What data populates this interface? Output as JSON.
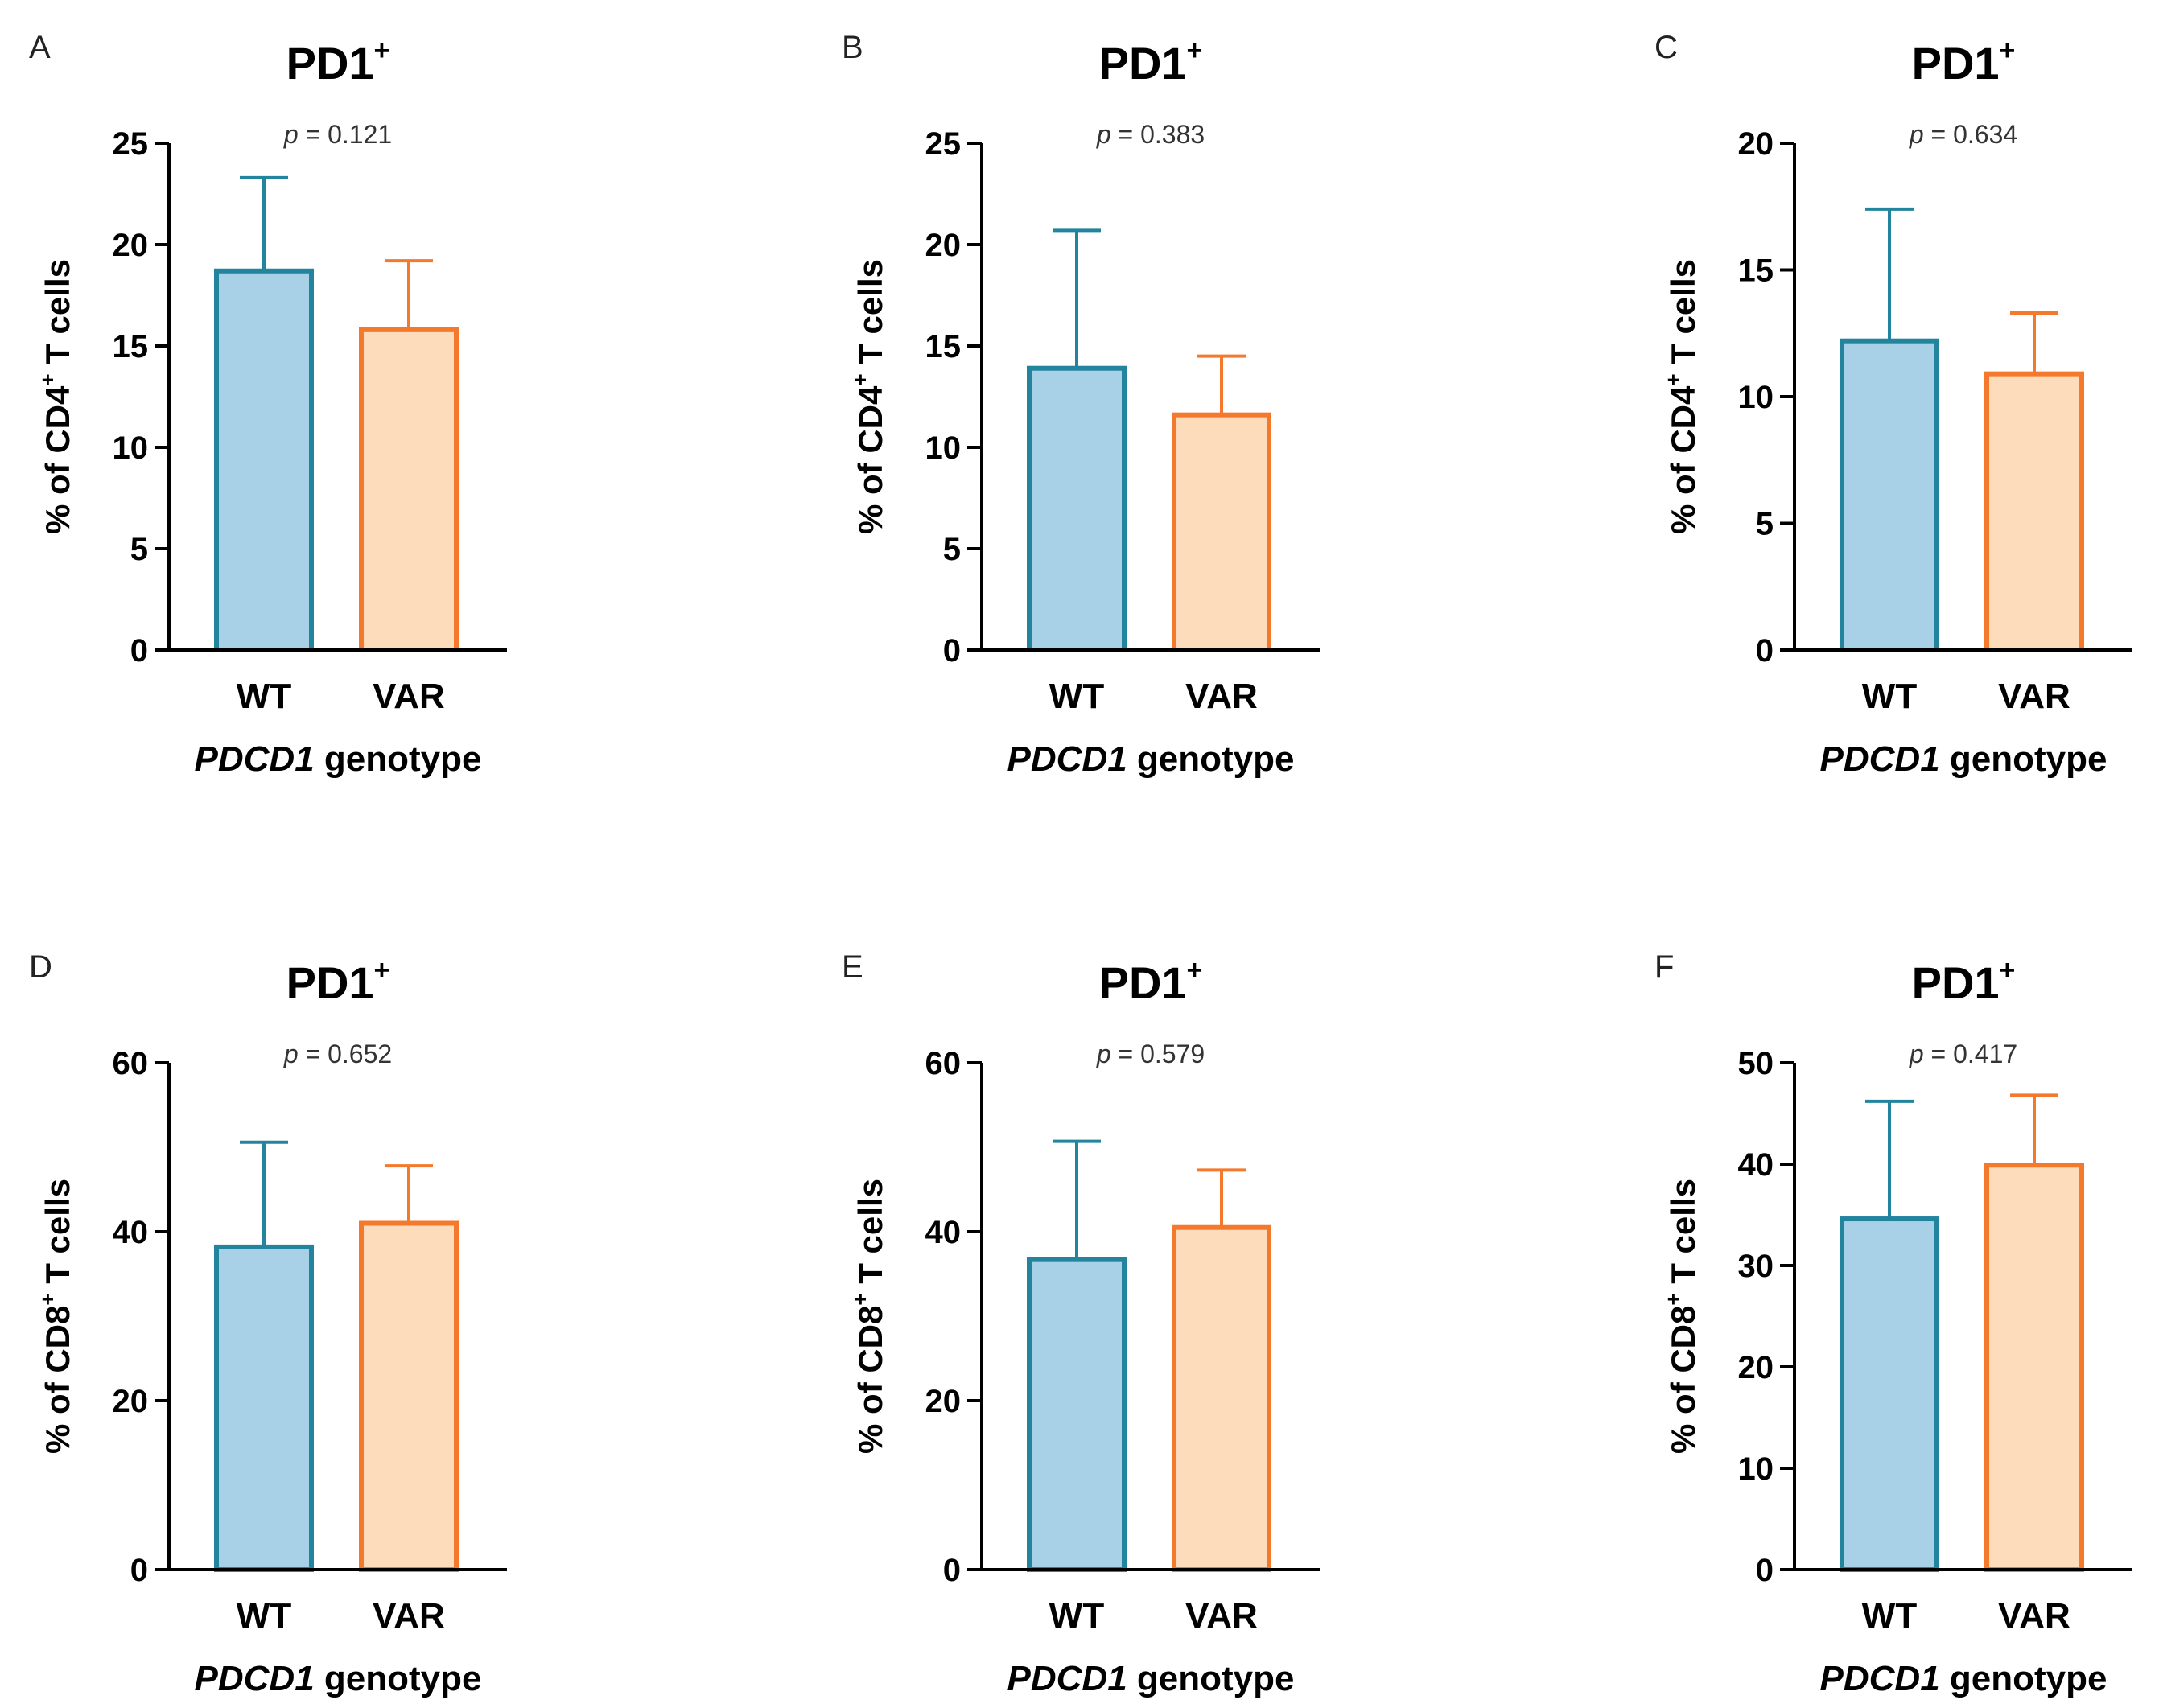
{
  "chart_data": [
    {
      "panel": "A",
      "type": "bar",
      "title": "PD1",
      "title_sup": "+",
      "p_label": "p",
      "p_text": " = 0.121",
      "ylabel_prefix": "% of CD4",
      "ylabel_sup": "+",
      "ylabel_suffix": " T cells",
      "xlabel_gene": "PDCD1",
      "xlabel_suffix": " genotype",
      "categories": [
        "WT",
        "VAR"
      ],
      "values": [
        18.7,
        15.8
      ],
      "errors": [
        4.6,
        3.4
      ],
      "ylim": [
        0,
        25
      ],
      "yticks": [
        0,
        5,
        10,
        15,
        20,
        25
      ]
    },
    {
      "panel": "B",
      "type": "bar",
      "title": "PD1",
      "title_sup": "+",
      "p_label": "p",
      "p_text": " = 0.383",
      "ylabel_prefix": "% of CD4",
      "ylabel_sup": "+",
      "ylabel_suffix": " T cells",
      "xlabel_gene": "PDCD1",
      "xlabel_suffix": " genotype",
      "categories": [
        "WT",
        "VAR"
      ],
      "values": [
        13.9,
        11.6
      ],
      "errors": [
        6.8,
        2.9
      ],
      "ylim": [
        0,
        25
      ],
      "yticks": [
        0,
        5,
        10,
        15,
        20,
        25
      ]
    },
    {
      "panel": "C",
      "type": "bar",
      "title": "PD1",
      "title_sup": "+",
      "p_label": "p",
      "p_text": " = 0.634",
      "ylabel_prefix": "% of CD4",
      "ylabel_sup": "+",
      "ylabel_suffix": " T cells",
      "xlabel_gene": "PDCD1",
      "xlabel_suffix": " genotype",
      "categories": [
        "WT",
        "VAR"
      ],
      "values": [
        12.2,
        10.9
      ],
      "errors": [
        5.2,
        2.4
      ],
      "ylim": [
        0,
        20
      ],
      "yticks": [
        0,
        5,
        10,
        15,
        20
      ]
    },
    {
      "panel": "D",
      "type": "bar",
      "title": "PD1",
      "title_sup": "+",
      "p_label": "p",
      "p_text": " = 0.652",
      "ylabel_prefix": "% of CD8",
      "ylabel_sup": "+",
      "ylabel_suffix": " T cells",
      "xlabel_gene": "PDCD1",
      "xlabel_suffix": " genotype",
      "categories": [
        "WT",
        "VAR"
      ],
      "values": [
        38.2,
        41.0
      ],
      "errors": [
        12.4,
        6.8
      ],
      "ylim": [
        0,
        60
      ],
      "yticks": [
        0,
        20,
        40,
        60
      ]
    },
    {
      "panel": "E",
      "type": "bar",
      "title": "PD1",
      "title_sup": "+",
      "p_label": "p",
      "p_text": " = 0.579",
      "ylabel_prefix": "% of CD8",
      "ylabel_sup": "+",
      "ylabel_suffix": " T cells",
      "xlabel_gene": "PDCD1",
      "xlabel_suffix": " genotype",
      "categories": [
        "WT",
        "VAR"
      ],
      "values": [
        36.7,
        40.5
      ],
      "errors": [
        14.0,
        6.8
      ],
      "ylim": [
        0,
        60
      ],
      "yticks": [
        0,
        20,
        40,
        60
      ]
    },
    {
      "panel": "F",
      "type": "bar",
      "title": "PD1",
      "title_sup": "+",
      "p_label": "p",
      "p_text": " = 0.417",
      "ylabel_prefix": "% of CD8",
      "ylabel_sup": "+",
      "ylabel_suffix": " T cells",
      "xlabel_gene": "PDCD1",
      "xlabel_suffix": " genotype",
      "categories": [
        "WT",
        "VAR"
      ],
      "values": [
        34.6,
        39.9
      ],
      "errors": [
        11.6,
        6.9
      ],
      "ylim": [
        0,
        50
      ],
      "yticks": [
        0,
        10,
        20,
        30,
        40,
        50
      ]
    }
  ],
  "colors": {
    "wt_fill": "#a8d1e8",
    "wt_stroke": "#23849e",
    "var_fill": "#fcdcba",
    "var_stroke": "#f5792d"
  }
}
